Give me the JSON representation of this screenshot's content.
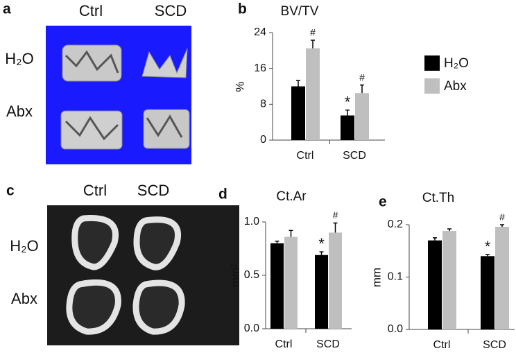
{
  "image_panels": [
    {
      "letter": "a",
      "columns": [
        "Ctrl",
        "SCD"
      ],
      "rows": [
        "H₂O",
        "Abx"
      ]
    },
    {
      "letter": "c",
      "columns": [
        "Ctrl",
        "SCD"
      ],
      "rows": [
        "H₂O",
        "Abx"
      ]
    }
  ],
  "chart_data": [
    {
      "type": "bar",
      "letter": "b",
      "title": "BV/TV",
      "y_label": "%",
      "categories": [
        "Ctrl",
        "SCD"
      ],
      "series": [
        {
          "name": "H₂O",
          "color": "#000000",
          "values": [
            12,
            5.5
          ],
          "errors": [
            1.3,
            1.2
          ],
          "markers": [
            null,
            "*"
          ]
        },
        {
          "name": "Abx",
          "color": "#bfbfbf",
          "values": [
            20.5,
            10.5
          ],
          "errors": [
            1.8,
            1.8
          ],
          "markers": [
            "#",
            "#"
          ]
        }
      ],
      "ylim": [
        0,
        24
      ],
      "yticks": [
        0,
        8,
        16,
        24
      ],
      "legend": "right"
    },
    {
      "type": "bar",
      "letter": "d",
      "title": "Ct.Ar",
      "y_label": "mm²",
      "categories": [
        "Ctrl",
        "SCD"
      ],
      "series": [
        {
          "name": "H₂O",
          "color": "#000000",
          "values": [
            0.8,
            0.69
          ],
          "errors": [
            0.02,
            0.03
          ],
          "markers": [
            null,
            "*"
          ]
        },
        {
          "name": "Abx",
          "color": "#bfbfbf",
          "values": [
            0.86,
            0.9
          ],
          "errors": [
            0.06,
            0.09
          ],
          "markers": [
            null,
            "#"
          ]
        }
      ],
      "ylim": [
        0,
        1.0
      ],
      "yticks": [
        {
          "value": 0,
          "label": "0.0"
        },
        {
          "value": 0.5,
          "label": "0.5"
        },
        {
          "value": 1.0,
          "label": "1.0"
        }
      ]
    },
    {
      "type": "bar",
      "letter": "e",
      "title": "Ct.Th",
      "y_label": "mm",
      "categories": [
        "Ctrl",
        "SCD"
      ],
      "series": [
        {
          "name": "H₂O",
          "color": "#000000",
          "values": [
            0.17,
            0.14
          ],
          "errors": [
            0.005,
            0.003
          ],
          "markers": [
            null,
            "*"
          ]
        },
        {
          "name": "Abx",
          "color": "#bfbfbf",
          "values": [
            0.188,
            0.196
          ],
          "errors": [
            0.004,
            0.004
          ],
          "markers": [
            null,
            "#"
          ]
        }
      ],
      "ylim": [
        0,
        0.2
      ],
      "yticks": [
        {
          "value": 0,
          "label": "0.0"
        },
        {
          "value": 0.1,
          "label": "0.1"
        },
        {
          "value": 0.2,
          "label": "0.2"
        }
      ]
    }
  ]
}
